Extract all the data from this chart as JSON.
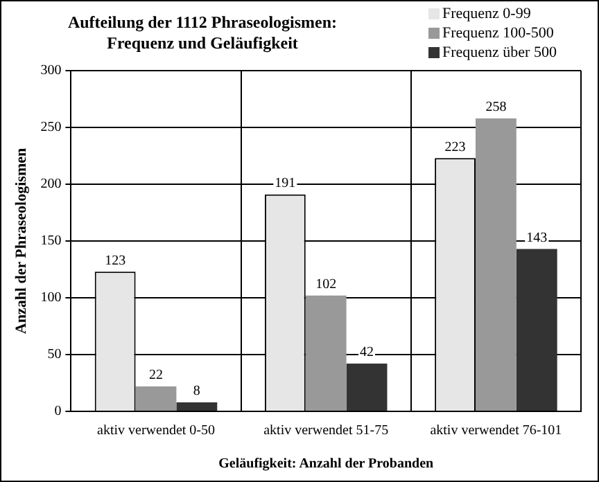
{
  "chart_data": {
    "type": "bar",
    "title": "Aufteilung der 1112 Phraseologismen:\nFrequenz und Geläufigkeit",
    "xlabel": "Geläufigkeit: Anzahl der Probanden",
    "ylabel": "Anzahl der Phraseologismen",
    "categories": [
      "aktiv verwendet 0-50",
      "aktiv verwendet 51-75",
      "aktiv verwendet 76-101"
    ],
    "series": [
      {
        "name": "Frequenz 0-99",
        "color": "#e6e6e6",
        "values": [
          123,
          191,
          223
        ]
      },
      {
        "name": "Frequenz 100-500",
        "color": "#999999",
        "values": [
          22,
          102,
          258
        ]
      },
      {
        "name": "Frequenz über 500",
        "color": "#333333",
        "values": [
          8,
          42,
          143
        ]
      }
    ],
    "ylim": [
      0,
      300
    ],
    "yticks": [
      0,
      50,
      100,
      150,
      200,
      250,
      300
    ],
    "grid": true,
    "legend": "top right",
    "data_labels": true
  }
}
